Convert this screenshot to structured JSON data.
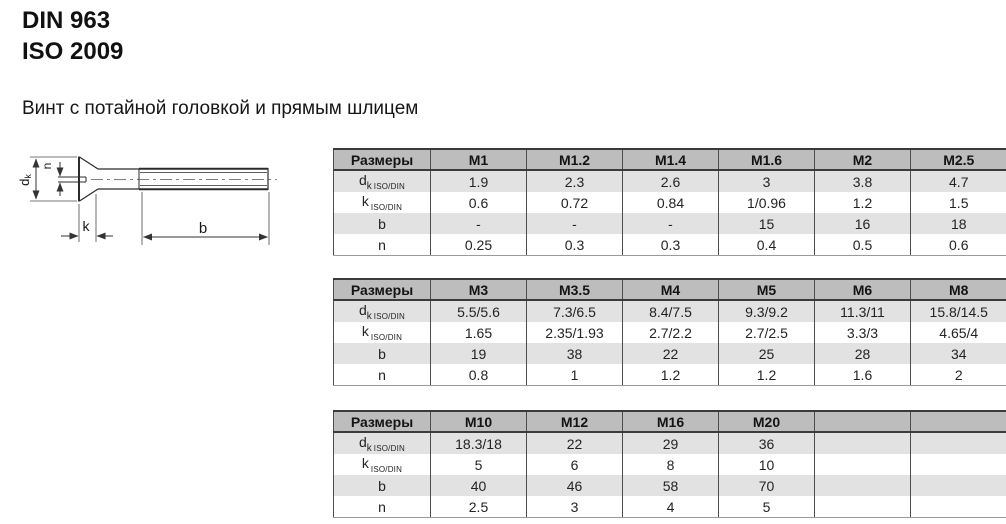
{
  "page": {
    "title_line1": "DIN 963",
    "title_line2": "ISO 2009",
    "subtitle": "Винт с потайной головкой и прямым шлицем"
  },
  "colors": {
    "header-bg": "#bdbdbd",
    "row-alt-bg": "#e2e2e2",
    "row-bg": "#ffffff",
    "border-dark": "#3b3b3b",
    "border-mid": "#4d4d4d",
    "border-light": "#9a9a9a",
    "text": "#232323"
  },
  "drawing": {
    "labels": {
      "dk_main": "d",
      "dk_sub": "k",
      "n": "n",
      "k": "k",
      "b": "b"
    }
  },
  "tables": [
    {
      "header": [
        "Размеры",
        "M1",
        "M1.2",
        "M1.4",
        "M1.6",
        "M2",
        "M2.5"
      ],
      "rows": [
        {
          "label": {
            "main": "d",
            "sub_big": "k",
            "sub_small": "ISO/DIN"
          },
          "values": [
            "1.9",
            "2.3",
            "2.6",
            "3",
            "3.8",
            "4.7"
          ]
        },
        {
          "label": {
            "main": "k",
            "sub_big": "",
            "sub_small": "ISO/DIN"
          },
          "values": [
            "0.6",
            "0.72",
            "0.84",
            "1/0.96",
            "1.2",
            "1.5"
          ]
        },
        {
          "label": {
            "main": "b"
          },
          "values": [
            "-",
            "-",
            "-",
            "15",
            "16",
            "18"
          ]
        },
        {
          "label": {
            "main": "n"
          },
          "values": [
            "0.25",
            "0.3",
            "0.3",
            "0.4",
            "0.5",
            "0.6"
          ]
        }
      ]
    },
    {
      "header": [
        "Размеры",
        "M3",
        "M3.5",
        "M4",
        "M5",
        "M6",
        "M8"
      ],
      "rows": [
        {
          "label": {
            "main": "d",
            "sub_big": "k",
            "sub_small": "ISO/DIN"
          },
          "values": [
            "5.5/5.6",
            "7.3/6.5",
            "8.4/7.5",
            "9.3/9.2",
            "11.3/11",
            "15.8/14.5"
          ]
        },
        {
          "label": {
            "main": "k",
            "sub_big": "",
            "sub_small": "ISO/DIN"
          },
          "values": [
            "1.65",
            "2.35/1.93",
            "2.7/2.2",
            "2.7/2.5",
            "3.3/3",
            "4.65/4"
          ]
        },
        {
          "label": {
            "main": "b"
          },
          "values": [
            "19",
            "38",
            "22",
            "25",
            "28",
            "34"
          ]
        },
        {
          "label": {
            "main": "n"
          },
          "values": [
            "0.8",
            "1",
            "1.2",
            "1.2",
            "1.6",
            "2"
          ]
        }
      ]
    },
    {
      "header": [
        "Размеры",
        "M10",
        "M12",
        "M16",
        "M20",
        "",
        ""
      ],
      "rows": [
        {
          "label": {
            "main": "d",
            "sub_big": "k",
            "sub_small": "ISO/DIN"
          },
          "values": [
            "18.3/18",
            "22",
            "29",
            "36",
            "",
            ""
          ]
        },
        {
          "label": {
            "main": "k",
            "sub_big": "",
            "sub_small": "ISO/DIN"
          },
          "values": [
            "5",
            "6",
            "8",
            "10",
            "",
            ""
          ]
        },
        {
          "label": {
            "main": "b"
          },
          "values": [
            "40",
            "46",
            "58",
            "70",
            "",
            ""
          ]
        },
        {
          "label": {
            "main": "n"
          },
          "values": [
            "2.5",
            "3",
            "4",
            "5",
            "",
            ""
          ]
        }
      ]
    }
  ]
}
